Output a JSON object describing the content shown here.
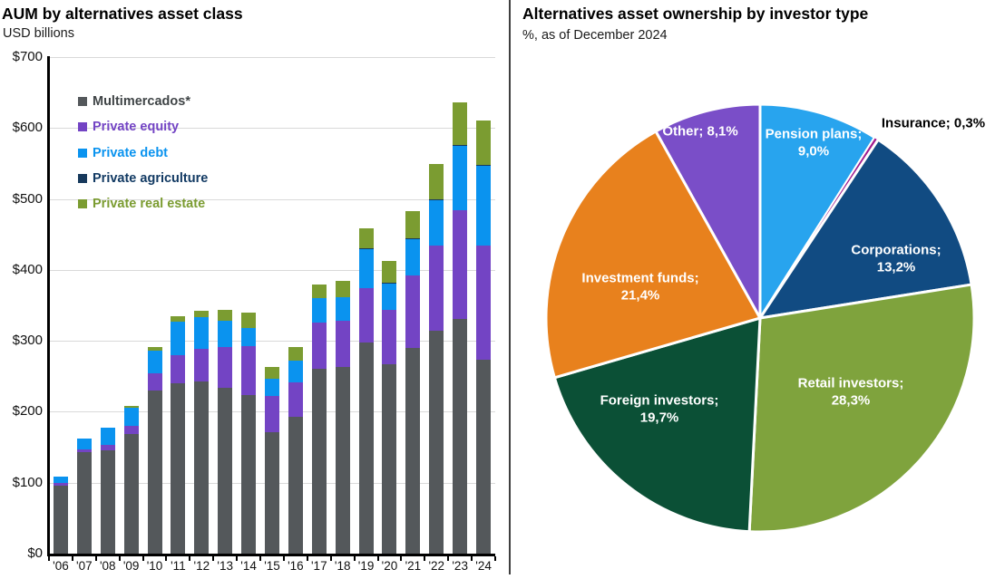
{
  "chart_data": [
    {
      "type": "bar",
      "stacked": true,
      "title": "AUM by alternatives asset class",
      "subtitle": "USD billions",
      "xlabel": "",
      "ylabel": "USD billions",
      "ylim": [
        0,
        700
      ],
      "grid": true,
      "legend_position": "upper-left-inside",
      "y_tick_labels": [
        "$0",
        "$100",
        "$200",
        "$300",
        "$400",
        "$500",
        "$600",
        "$700"
      ],
      "categories": [
        "'06",
        "'07",
        "'08",
        "'09",
        "'10",
        "'11",
        "'12",
        "'13",
        "'14",
        "'15",
        "'16",
        "'17",
        "'18",
        "'19",
        "'20",
        "'21",
        "'22",
        "'23",
        "'24"
      ],
      "series": [
        {
          "name": "Multimercados*",
          "color": "#54585B",
          "text_color": "#3F4446",
          "values": [
            96,
            143,
            146,
            169,
            230,
            240,
            243,
            234,
            224,
            171,
            193,
            261,
            263,
            298,
            267,
            290,
            314,
            331,
            273
          ]
        },
        {
          "name": "Private equity",
          "color": "#7344C4",
          "text_color": "#7344C4",
          "values": [
            4,
            4,
            7,
            11,
            24,
            40,
            46,
            57,
            68,
            51,
            48,
            65,
            65,
            76,
            77,
            102,
            120,
            153,
            161
          ]
        },
        {
          "name": "Private debt",
          "color": "#0A93EF",
          "text_color": "#0A93EF",
          "values": [
            9,
            15,
            25,
            26,
            32,
            47,
            44,
            37,
            26,
            25,
            31,
            34,
            33,
            55,
            37,
            52,
            65,
            91,
            113
          ]
        },
        {
          "name": "Private agriculture",
          "color": "#17395C",
          "text_color": "#123A63",
          "values": [
            0,
            0,
            0,
            0,
            0,
            0,
            0,
            0,
            0,
            0,
            0,
            0,
            0,
            1,
            1,
            1,
            1,
            1,
            1
          ]
        },
        {
          "name": "Private real estate",
          "color": "#7B9C31",
          "text_color": "#7B9C31",
          "values": [
            0,
            0,
            0,
            2,
            5,
            8,
            9,
            16,
            22,
            16,
            19,
            20,
            23,
            28,
            30,
            38,
            49,
            60,
            62
          ]
        }
      ],
      "totals": [
        109,
        162,
        178,
        208,
        291,
        335,
        342,
        344,
        340,
        263,
        291,
        380,
        384,
        458,
        412,
        483,
        549,
        636,
        610
      ]
    },
    {
      "type": "pie",
      "title": "Alternatives asset ownership by investor type",
      "subtitle": "%, as of December 2024",
      "start_angle": "top",
      "direction": "clockwise",
      "slices": [
        {
          "label": "Pension plans",
          "value": 9.0,
          "color": "#28A4EE",
          "label_lines": [
            "Pension plans;",
            "9,0%"
          ],
          "label_color": "#FFFFFF",
          "label_outside": false
        },
        {
          "label": "Insurance",
          "value": 0.3,
          "color": "#A01B8E",
          "label_lines": [
            "Insurance; 0,3%"
          ],
          "label_color": "#000000",
          "label_outside": true
        },
        {
          "label": "Corporations",
          "value": 13.2,
          "color": "#114B82",
          "label_lines": [
            "Corporations;",
            "13,2%"
          ],
          "label_color": "#FFFFFF",
          "label_outside": false
        },
        {
          "label": "Retail investors",
          "value": 28.3,
          "color": "#7FA33D",
          "label_lines": [
            "Retail investors;",
            "28,3%"
          ],
          "label_color": "#FFFFFF",
          "label_outside": false
        },
        {
          "label": "Foreign investors",
          "value": 19.7,
          "color": "#0B5036",
          "label_lines": [
            "Foreign investors;",
            "19,7%"
          ],
          "label_color": "#FFFFFF",
          "label_outside": false
        },
        {
          "label": "Investment funds",
          "value": 21.4,
          "color": "#E8811D",
          "label_lines": [
            "Investment funds;",
            "21,4%"
          ],
          "label_color": "#FFFFFF",
          "label_outside": false
        },
        {
          "label": "Other",
          "value": 8.1,
          "color": "#7A4EC8",
          "label_lines": [
            "Other; 8,1%"
          ],
          "label_color": "#FFFFFF",
          "label_outside": false
        }
      ]
    }
  ]
}
